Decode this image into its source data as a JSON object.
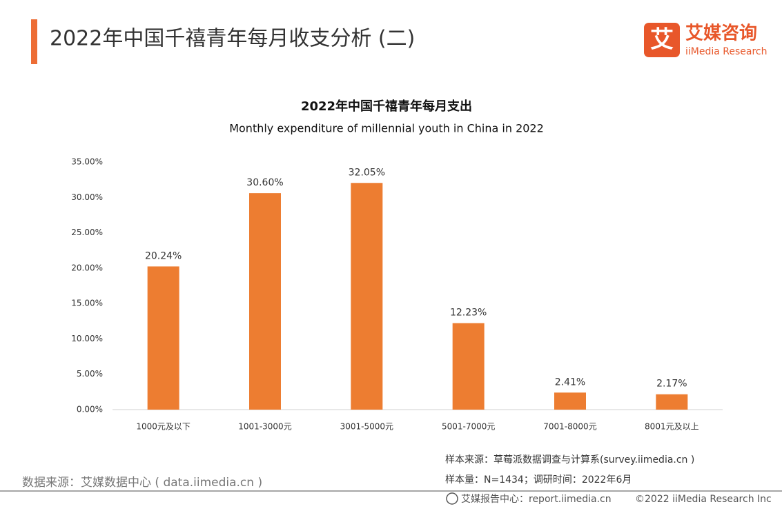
{
  "header": {
    "title": "2022年中国千禧青年每月收支分析 (二)",
    "logo_mark": "艾",
    "logo_name": "艾媒咨询",
    "logo_sub": "iiMedia Research"
  },
  "chart_data": {
    "type": "bar",
    "title": "2022年中国千禧青年每月支出",
    "subtitle": "Monthly expenditure of millennial youth in China in 2022",
    "categories": [
      "1000元及以下",
      "1001-3000元",
      "3001-5000元",
      "5001-7000元",
      "7001-8000元",
      "8001元及以上"
    ],
    "values": [
      20.24,
      30.6,
      32.05,
      12.23,
      2.41,
      2.17
    ],
    "value_labels": [
      "20.24%",
      "30.60%",
      "32.05%",
      "12.23%",
      "2.41%",
      "2.17%"
    ],
    "color": "#ed7d31",
    "ylim": [
      0,
      35
    ],
    "yticks": [
      {
        "value": 0,
        "label": "0.00%"
      },
      {
        "value": 5,
        "label": "5.00%"
      },
      {
        "value": 10,
        "label": "10.00%"
      },
      {
        "value": 15,
        "label": "15.00%"
      },
      {
        "value": 20,
        "label": "20.00%"
      },
      {
        "value": 25,
        "label": "25.00%"
      },
      {
        "value": 30,
        "label": "30.00%"
      },
      {
        "value": 35,
        "label": "35.00%"
      }
    ],
    "grid": false
  },
  "footer": {
    "source": "数据来源：艾媒数据中心 ( data.iimedia.cn )",
    "sample_source": "样本来源：草莓派数据调查与计算系(survey.iimedia.cn )",
    "sample_size": "样本量：N=1434；调研时间：2022年6月",
    "report_center": "艾媒报告中心：report.iimedia.cn",
    "copyright": "©2022 iiMedia Research Inc"
  }
}
